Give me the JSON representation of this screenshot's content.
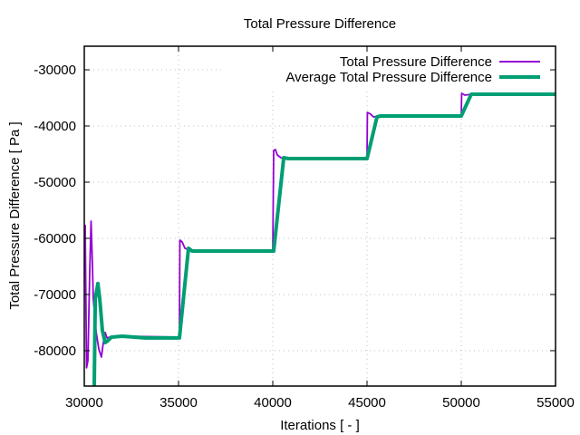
{
  "chart_data": {
    "type": "line",
    "title": "Total Pressure Difference",
    "xlabel": "Iterations [ - ]",
    "ylabel": "Total Pressure Difference [ Pa ]",
    "xlim": [
      30000,
      55000
    ],
    "ylim": [
      -86300,
      -25800
    ],
    "xticks": [
      30000,
      35000,
      40000,
      45000,
      50000,
      55000
    ],
    "xtick_labels": [
      "30000",
      "35000",
      "40000",
      "45000",
      "50000",
      "55000"
    ],
    "yticks": [
      -30000,
      -40000,
      -50000,
      -60000,
      -70000,
      -80000
    ],
    "ytick_labels": [
      "-30000",
      "-40000",
      "-50000",
      "-60000",
      "-70000",
      "-80000"
    ],
    "grid": true,
    "legend_position": "top-right",
    "series": [
      {
        "name": "Total Pressure Difference",
        "color": "#9400d3",
        "x": [
          30048,
          30120,
          30190,
          30290,
          30360,
          30430,
          30480,
          30620,
          30770,
          30910,
          31010,
          31110,
          31200,
          31350,
          31680,
          32260,
          35050,
          35070,
          35190,
          35340,
          35620,
          36110,
          40000,
          40050,
          40140,
          40240,
          40430,
          40910,
          45000,
          45020,
          45190,
          45340,
          45720,
          50000,
          50020,
          50190,
          50530,
          55000
        ],
        "y": [
          -57580,
          -83060,
          -81770,
          -65970,
          -56940,
          -64350,
          -70810,
          -76450,
          -79680,
          -81130,
          -78550,
          -76770,
          -77740,
          -77580,
          -77420,
          -77420,
          -77580,
          -60320,
          -60650,
          -61770,
          -62100,
          -62260,
          -62260,
          -44350,
          -44190,
          -45160,
          -45650,
          -45810,
          -45810,
          -37580,
          -37900,
          -38390,
          -38230,
          -38230,
          -34190,
          -34520,
          -34350,
          -34350
        ]
      },
      {
        "name": "Average Total Pressure Difference",
        "color": "#009e73",
        "x": [
          30530,
          30580,
          30720,
          30820,
          30960,
          31110,
          31250,
          31440,
          32020,
          33220,
          35050,
          35530,
          35720,
          40050,
          40580,
          40820,
          45000,
          45530,
          45720,
          50000,
          50530,
          55000
        ],
        "y": [
          -86300,
          -70810,
          -68060,
          -70810,
          -76450,
          -78550,
          -78230,
          -77580,
          -77420,
          -77740,
          -77740,
          -61770,
          -62260,
          -62260,
          -45650,
          -45810,
          -45810,
          -38390,
          -38230,
          -38230,
          -34350,
          -34350
        ]
      }
    ]
  }
}
